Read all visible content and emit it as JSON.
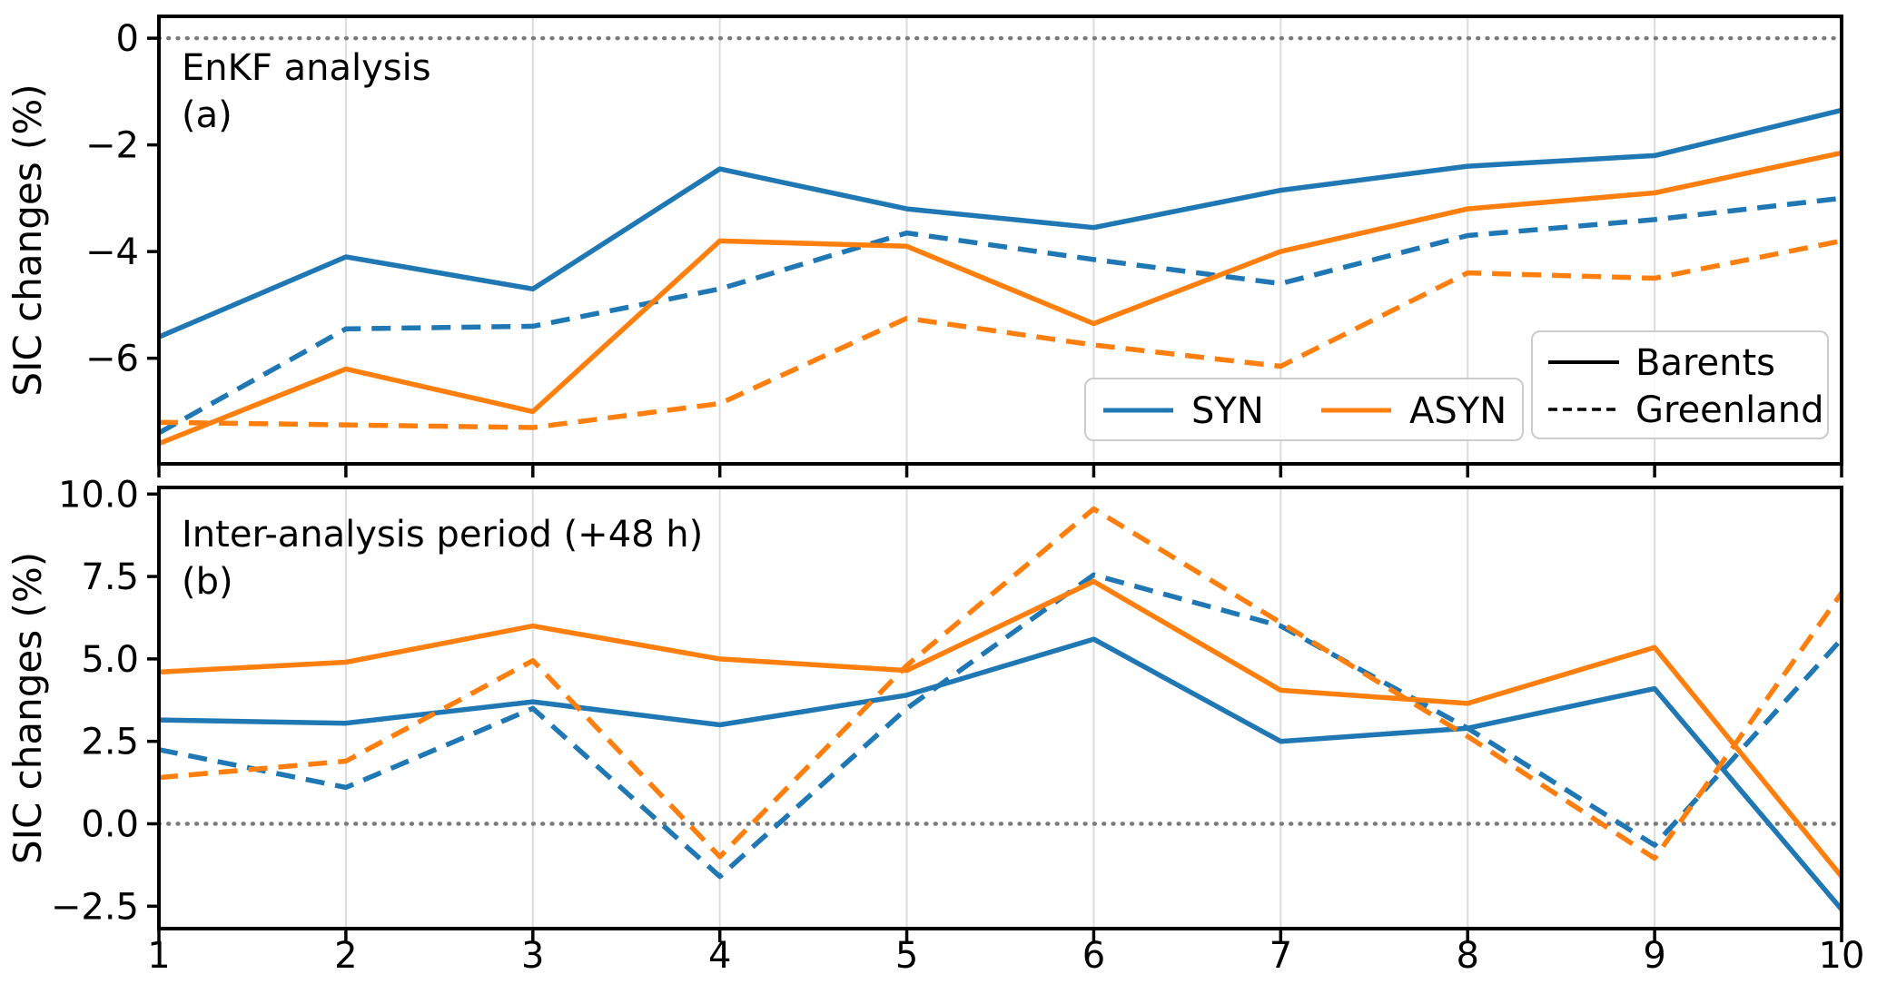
{
  "chart_data": {
    "type": "line",
    "title": "",
    "x": [
      1,
      2,
      3,
      4,
      5,
      6,
      7,
      8,
      9,
      10
    ],
    "axis": {
      "xticks": [
        1,
        2,
        3,
        4,
        5,
        6,
        7,
        8,
        9,
        10
      ],
      "xtick_labels": [
        "1",
        "2",
        "3",
        "4",
        "5",
        "6",
        "7",
        "8",
        "9",
        "10"
      ],
      "grid_x": [
        2,
        3,
        4,
        5,
        6,
        7,
        8,
        9
      ],
      "grid_on": "vertical-only",
      "zero_reference_line": "dotted"
    },
    "colors": {
      "syn": "#1f77b4",
      "asyn": "#ff7f0e",
      "zero_line": "#7a7a7a",
      "grid": "#dcdcdc",
      "spine": "#000000",
      "legend_border": "#cccccc"
    },
    "panels": [
      {
        "id": "a",
        "label": "EnKF analysis",
        "tag": "(a)",
        "ylabel": "SIC changes (%)",
        "ylim": [
          -7.98,
          0.41
        ],
        "zero_line": 0,
        "show_xtick_labels": false,
        "yticks": [
          {
            "v": 0,
            "label": "0"
          },
          {
            "v": -2,
            "label": "−2"
          },
          {
            "v": -4,
            "label": "−4"
          },
          {
            "v": -6,
            "label": "−6"
          }
        ],
        "series": [
          {
            "name": "SYN Barents",
            "experiment": "SYN",
            "region": "Barents",
            "dash": "solid",
            "color": "#1f77b4",
            "values": [
              -5.6,
              -4.1,
              -4.7,
              -2.45,
              -3.2,
              -3.55,
              -2.85,
              -2.4,
              -2.2,
              -1.35
            ]
          },
          {
            "name": "SYN Greenland",
            "experiment": "SYN",
            "region": "Greenland",
            "dash": "dashed",
            "color": "#1f77b4",
            "values": [
              -7.4,
              -5.45,
              -5.4,
              -4.7,
              -3.65,
              -4.15,
              -4.6,
              -3.7,
              -3.4,
              -3.0
            ]
          },
          {
            "name": "ASYN Barents",
            "experiment": "ASYN",
            "region": "Barents",
            "dash": "solid",
            "color": "#ff7f0e",
            "values": [
              -7.6,
              -6.2,
              -7.0,
              -3.8,
              -3.9,
              -5.35,
              -4.0,
              -3.2,
              -2.9,
              -2.15
            ]
          },
          {
            "name": "ASYN Greenland",
            "experiment": "ASYN",
            "region": "Greenland",
            "dash": "dashed",
            "color": "#ff7f0e",
            "values": [
              -7.2,
              -7.25,
              -7.3,
              -6.85,
              -5.25,
              -5.75,
              -6.15,
              -4.4,
              -4.5,
              -3.8
            ]
          }
        ]
      },
      {
        "id": "b",
        "label": "Inter-analysis period (+48 h)",
        "tag": "(b)",
        "ylabel": "SIC changes (%)",
        "ylim": [
          -3.18,
          10.2
        ],
        "zero_line": 0,
        "show_xtick_labels": true,
        "yticks": [
          {
            "v": 10,
            "label": "10.0"
          },
          {
            "v": 7.5,
            "label": "7.5"
          },
          {
            "v": 5,
            "label": "5.0"
          },
          {
            "v": 2.5,
            "label": "2.5"
          },
          {
            "v": 0,
            "label": "0.0"
          },
          {
            "v": -2.5,
            "label": "−2.5"
          }
        ],
        "series": [
          {
            "name": "SYN Barents",
            "experiment": "SYN",
            "region": "Barents",
            "dash": "solid",
            "color": "#1f77b4",
            "values": [
              3.15,
              3.05,
              3.7,
              3.0,
              3.9,
              5.6,
              2.5,
              2.9,
              4.1,
              -2.6
            ]
          },
          {
            "name": "SYN Greenland",
            "experiment": "SYN",
            "region": "Greenland",
            "dash": "dashed",
            "color": "#1f77b4",
            "values": [
              2.25,
              1.1,
              3.5,
              -1.6,
              3.5,
              7.55,
              6.0,
              2.9,
              -0.65,
              5.6
            ]
          },
          {
            "name": "ASYN Barents",
            "experiment": "ASYN",
            "region": "Barents",
            "dash": "solid",
            "color": "#ff7f0e",
            "values": [
              4.6,
              4.9,
              6.0,
              5.0,
              4.65,
              7.35,
              4.05,
              3.65,
              5.35,
              -1.6
            ]
          },
          {
            "name": "ASYN Greenland",
            "experiment": "ASYN",
            "region": "Greenland",
            "dash": "dashed",
            "color": "#ff7f0e",
            "values": [
              1.4,
              1.9,
              4.95,
              -1.0,
              4.8,
              9.55,
              6.1,
              2.65,
              -1.05,
              7.0
            ]
          }
        ]
      }
    ],
    "legends": {
      "experiments": {
        "items": [
          {
            "label": "SYN",
            "color": "#1f77b4"
          },
          {
            "label": "ASYN",
            "color": "#ff7f0e"
          }
        ]
      },
      "regions": {
        "items": [
          {
            "label": "Barents",
            "dash": "solid"
          },
          {
            "label": "Greenland",
            "dash": "dashed"
          }
        ]
      }
    }
  }
}
